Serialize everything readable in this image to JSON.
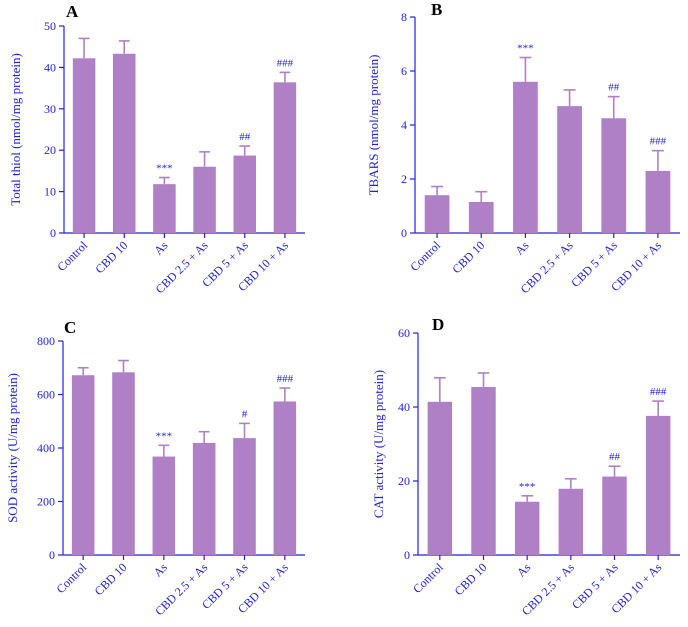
{
  "figure": {
    "colors": {
      "bar": "#B080C6",
      "axis": "#2222DD",
      "text": "#2222DD",
      "panel_letter": "#000000"
    }
  },
  "chart_data": [
    {
      "panel": "A",
      "type": "bar",
      "categories": [
        "Control",
        "CBD 10",
        "As",
        "CBD 2.5 + As",
        "CBD 5 + As",
        "CBD 10 + As"
      ],
      "values": [
        42.2,
        43.3,
        11.8,
        16.0,
        18.7,
        36.4
      ],
      "errors": [
        4.8,
        3.1,
        1.6,
        3.6,
        2.3,
        2.4
      ],
      "annotations": [
        "",
        "",
        "***",
        "",
        "##",
        "###"
      ],
      "ylabel": "Total thiol  (nmol/mg protein)",
      "ylim": [
        0,
        50
      ],
      "yticks": [
        0,
        10,
        20,
        30,
        40,
        50
      ]
    },
    {
      "panel": "B",
      "type": "bar",
      "categories": [
        "Control",
        "CBD 10",
        "As",
        "CBD 2.5 + As",
        "CBD 5 + As",
        "CBD 10 + As"
      ],
      "values": [
        1.4,
        1.15,
        5.6,
        4.7,
        4.25,
        2.3
      ],
      "errors": [
        0.32,
        0.38,
        0.9,
        0.6,
        0.8,
        0.75
      ],
      "annotations": [
        "",
        "",
        "***",
        "",
        "##",
        "###"
      ],
      "ylabel": "TBARS (nmol/mg protein)",
      "ylim": [
        0,
        8
      ],
      "yticks": [
        0,
        2,
        4,
        6,
        8
      ]
    },
    {
      "panel": "C",
      "type": "bar",
      "categories": [
        "Control",
        "CBD 10",
        "As",
        "CBD 2.5 + As",
        "CBD 5 + As",
        "CBD 10 + As"
      ],
      "values": [
        672,
        683,
        368,
        419,
        437,
        574
      ],
      "errors": [
        28,
        44,
        42,
        42,
        55,
        50
      ],
      "annotations": [
        "",
        "",
        "***",
        "",
        "#",
        "###"
      ],
      "ylabel": "SOD activity (U/mg protein)",
      "ylim": [
        0,
        800
      ],
      "yticks": [
        0,
        200,
        400,
        600,
        800
      ]
    },
    {
      "panel": "D",
      "type": "bar",
      "categories": [
        "Control",
        "CBD 10",
        "As",
        "CBD 2.5 + As",
        "CBD 5 + As",
        "CBD 10 + As"
      ],
      "values": [
        41.4,
        45.4,
        14.4,
        17.9,
        21.2,
        37.6
      ],
      "errors": [
        6.5,
        3.8,
        1.6,
        2.7,
        2.8,
        4.0
      ],
      "annotations": [
        "",
        "",
        "***",
        "",
        "##",
        "###"
      ],
      "ylabel": "CAT activity (U/mg protein)",
      "ylim": [
        0,
        60
      ],
      "yticks": [
        0,
        20,
        40,
        60
      ]
    }
  ]
}
